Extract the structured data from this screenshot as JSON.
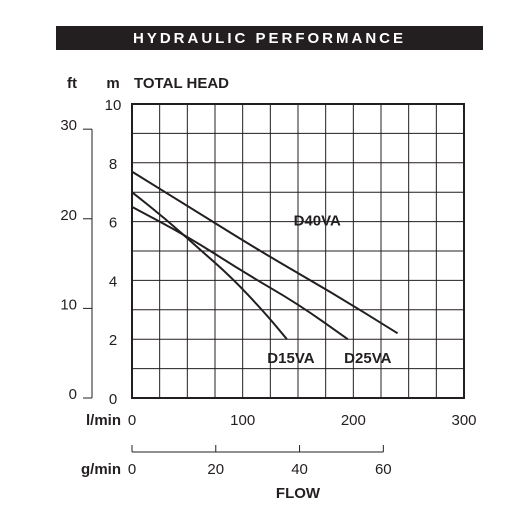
{
  "header": {
    "title": "HYDRAULIC PERFORMANCE"
  },
  "chart_data": {
    "type": "line",
    "title": "",
    "ylabel": "TOTAL HEAD",
    "y_units": {
      "m": "m",
      "ft": "ft"
    },
    "ylim": [
      0,
      10
    ],
    "y_ticks_m": [
      "0",
      "2",
      "4",
      "6",
      "8",
      "10"
    ],
    "y_ticks_ft": [
      "0",
      "10",
      "20",
      "30"
    ],
    "xlabel": "FLOW",
    "x_units": {
      "lmin": "l/min",
      "gmin": "g/min"
    },
    "xlim": [
      0,
      300
    ],
    "x_ticks_lmin": [
      "0",
      "100",
      "200",
      "300"
    ],
    "x_ticks_gmin": [
      "0",
      "20",
      "40",
      "60"
    ],
    "grid": true,
    "series": [
      {
        "name": "D15VA",
        "x": [
          0,
          30,
          60,
          90,
          120,
          140
        ],
        "y": [
          7.0,
          6.1,
          5.1,
          4.1,
          2.9,
          2.0
        ]
      },
      {
        "name": "D25VA",
        "x": [
          0,
          50,
          100,
          150,
          195
        ],
        "y": [
          6.5,
          5.5,
          4.3,
          3.2,
          2.0
        ]
      },
      {
        "name": "D40VA",
        "x": [
          0,
          60,
          120,
          180,
          240
        ],
        "y": [
          7.7,
          6.3,
          4.9,
          3.6,
          2.2
        ]
      }
    ]
  }
}
